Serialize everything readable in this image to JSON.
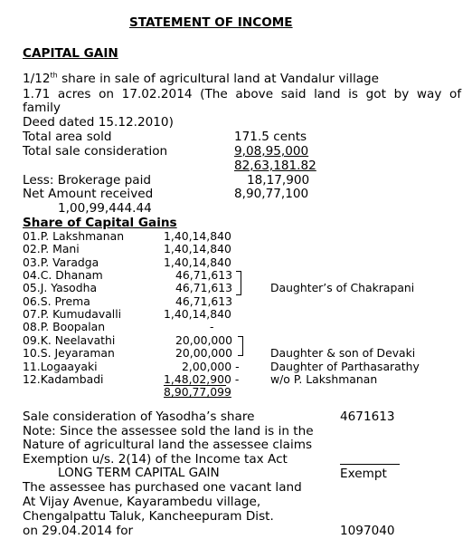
{
  "title": "STATEMENT OF INCOME",
  "section_heading": "CAPITAL GAIN",
  "intro": {
    "line1_prefix": "1/12",
    "line1_sup": "th",
    "line1_suffix": " share in sale of agricultural land at Vandalur village",
    "line2": "1.71  acres  on  17.02.2014  (The  above  said  land  is  got  by  way  of",
    "line3": "family",
    "line4": "Deed dated 15.12.2010)"
  },
  "details": [
    {
      "label": "Total area sold",
      "value": "171.5 cents"
    },
    {
      "label": "Total sale consideration",
      "value": "9,08,95,000"
    },
    {
      "label": "",
      "value": "82,63,181.82"
    },
    {
      "label": "Less: Brokerage paid",
      "value": "18,17,900"
    },
    {
      "label": "Net Amount received",
      "value": "8,90,77,100"
    }
  ],
  "per_share": "1,00,99,444.44",
  "shares_heading": "Share of Capital Gains",
  "shares": [
    {
      "name": "01.P. Lakshmanan",
      "amount": "1,40,14,840"
    },
    {
      "name": "02.P. Mani",
      "amount": "1,40,14,840"
    },
    {
      "name": "03.P. Varadga",
      "amount": "1,40,14,840"
    },
    {
      "name": "04.C. Dhanam",
      "amount": "46,71,613"
    },
    {
      "name": "05.J. Yasodha",
      "amount": "46,71,613"
    },
    {
      "name": "06.S. Prema",
      "amount": "46,71,613"
    },
    {
      "name": "07.P. Kumudavalli",
      "amount": "1,40,14,840"
    },
    {
      "name": "08.P. Boopalan",
      "amount": "-"
    },
    {
      "name": "09.K. Neelavathi",
      "amount": "20,00,000"
    },
    {
      "name": "10.S. Jeyaraman",
      "amount": "20,00,000"
    },
    {
      "name": "11.Logaayaki",
      "amount": "2,00,000 -"
    },
    {
      "name": "12.Kadambadi",
      "amount": "1,48,02,900 -"
    }
  ],
  "shares_total": "8,90,77,099",
  "notes": {
    "chakrapani": "Daughter’s of Chakrapani",
    "devaki": "Daughter & son of Devaki",
    "parthasarathy": "Daughter of Parthasarathy",
    "lakshmanan": "w/o P. Lakshmanan"
  },
  "footer": {
    "sale_label": "Sale consideration of Yasodha’s share",
    "sale_value": "4671613",
    "note1": "Note: Since the assessee sold the land is in the",
    "note2": "Nature of agricultural land the assessee claims",
    "note3": "Exemption u/s. 2(14) of the Income tax Act",
    "ltcg_label": "LONG TERM CAPITAL GAIN",
    "ltcg_value": "Exempt",
    "p1": "The assessee has purchased one vacant land",
    "p2": "At Vijay Avenue, Kayarambedu village,",
    "p3": "Chengalpattu Taluk, Kancheepuram Dist.",
    "p4": "on 29.04.2014 for",
    "p4_value": "1097040"
  }
}
